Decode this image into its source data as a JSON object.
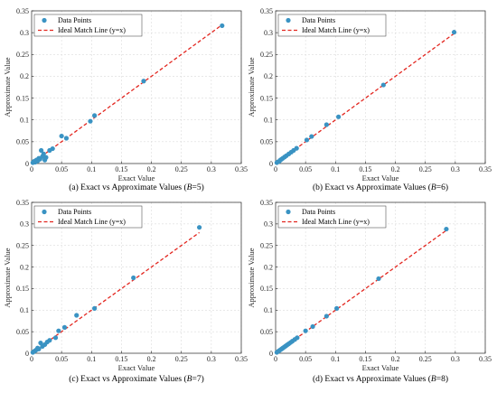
{
  "chart_data": [
    {
      "type": "scatter",
      "caption": "(a) Exact vs Approximate Values (",
      "caption_var": "B",
      "caption_val": "=5)",
      "xlabel": "Exact Value",
      "ylabel": "Approximate Value",
      "xlim": [
        0,
        0.35
      ],
      "ylim": [
        0,
        0.35
      ],
      "xticks": [
        "0",
        "0.05",
        "0.1",
        "0.15",
        "0.2",
        "0.25",
        "0.3",
        "0.35"
      ],
      "yticks": [
        "0",
        "0.05",
        "0.1",
        "0.15",
        "0.2",
        "0.25",
        "0.3",
        "0.35"
      ],
      "legend": [
        "Data Points",
        "Ideal Match Line (y=x)"
      ],
      "legend_position": "top-left",
      "ideal_line": [
        0,
        0.318
      ],
      "points": [
        [
          0.002,
          0.002
        ],
        [
          0.004,
          0.005
        ],
        [
          0.006,
          0.003
        ],
        [
          0.008,
          0.008
        ],
        [
          0.01,
          0.006
        ],
        [
          0.012,
          0.012
        ],
        [
          0.014,
          0.01
        ],
        [
          0.016,
          0.03
        ],
        [
          0.018,
          0.016
        ],
        [
          0.02,
          0.022
        ],
        [
          0.022,
          0.008
        ],
        [
          0.024,
          0.014
        ],
        [
          0.03,
          0.03
        ],
        [
          0.035,
          0.034
        ],
        [
          0.05,
          0.063
        ],
        [
          0.058,
          0.058
        ],
        [
          0.098,
          0.097
        ],
        [
          0.105,
          0.11
        ],
        [
          0.187,
          0.189
        ],
        [
          0.318,
          0.316
        ]
      ]
    },
    {
      "type": "scatter",
      "caption": "(b) Exact vs Approximate Values (",
      "caption_var": "B",
      "caption_val": "=6)",
      "xlabel": "Exact Value",
      "ylabel": "Approximate Value",
      "xlim": [
        0,
        0.35
      ],
      "ylim": [
        0,
        0.35
      ],
      "xticks": [
        "0",
        "0.05",
        "0.1",
        "0.15",
        "0.2",
        "0.25",
        "0.3",
        "0.35"
      ],
      "yticks": [
        "0",
        "0.05",
        "0.1",
        "0.15",
        "0.2",
        "0.25",
        "0.3",
        "0.35"
      ],
      "legend": [
        "Data Points",
        "Ideal Match Line (y=x)"
      ],
      "legend_position": "top-left",
      "ideal_line": [
        0,
        0.3
      ],
      "points": [
        [
          0.002,
          0.002
        ],
        [
          0.004,
          0.004
        ],
        [
          0.006,
          0.005
        ],
        [
          0.008,
          0.008
        ],
        [
          0.01,
          0.01
        ],
        [
          0.012,
          0.012
        ],
        [
          0.015,
          0.015
        ],
        [
          0.018,
          0.018
        ],
        [
          0.022,
          0.022
        ],
        [
          0.026,
          0.026
        ],
        [
          0.03,
          0.03
        ],
        [
          0.035,
          0.035
        ],
        [
          0.052,
          0.054
        ],
        [
          0.06,
          0.062
        ],
        [
          0.085,
          0.089
        ],
        [
          0.105,
          0.107
        ],
        [
          0.18,
          0.18
        ],
        [
          0.298,
          0.301
        ]
      ]
    },
    {
      "type": "scatter",
      "caption": "(c) Exact vs Approximate Values (",
      "caption_var": "B",
      "caption_val": "=7)",
      "xlabel": "Exact Value",
      "ylabel": "Approximate Value",
      "xlim": [
        0,
        0.35
      ],
      "ylim": [
        0,
        0.35
      ],
      "xticks": [
        "0",
        "0.05",
        "0.1",
        "0.15",
        "0.2",
        "0.25",
        "0.3",
        "0.35"
      ],
      "yticks": [
        "0",
        "0.05",
        "0.1",
        "0.15",
        "0.2",
        "0.25",
        "0.3",
        "0.35"
      ],
      "legend": [
        "Data Points",
        "Ideal Match Line (y=x)"
      ],
      "legend_position": "top-left",
      "ideal_line": [
        0,
        0.28
      ],
      "points": [
        [
          0.002,
          0.002
        ],
        [
          0.004,
          0.004
        ],
        [
          0.006,
          0.006
        ],
        [
          0.008,
          0.008
        ],
        [
          0.01,
          0.012
        ],
        [
          0.012,
          0.01
        ],
        [
          0.015,
          0.024
        ],
        [
          0.018,
          0.016
        ],
        [
          0.022,
          0.02
        ],
        [
          0.026,
          0.026
        ],
        [
          0.03,
          0.03
        ],
        [
          0.04,
          0.036
        ],
        [
          0.045,
          0.052
        ],
        [
          0.055,
          0.06
        ],
        [
          0.075,
          0.088
        ],
        [
          0.105,
          0.104
        ],
        [
          0.17,
          0.175
        ],
        [
          0.28,
          0.292
        ]
      ]
    },
    {
      "type": "scatter",
      "caption": "(d) Exact vs Approximate Values (",
      "caption_var": "B",
      "caption_val": "=8)",
      "xlabel": "Exact Value",
      "ylabel": "Approximate Value",
      "xlim": [
        0,
        0.35
      ],
      "ylim": [
        0,
        0.35
      ],
      "xticks": [
        "0",
        "0.05",
        "0.1",
        "0.15",
        "0.2",
        "0.25",
        "0.3",
        "0.35"
      ],
      "yticks": [
        "0",
        "0.05",
        "0.1",
        "0.15",
        "0.2",
        "0.25",
        "0.3",
        "0.35"
      ],
      "legend": [
        "Data Points",
        "Ideal Match Line (y=x)"
      ],
      "legend_position": "top-left",
      "ideal_line": [
        0,
        0.285
      ],
      "points": [
        [
          0.002,
          0.002
        ],
        [
          0.004,
          0.004
        ],
        [
          0.006,
          0.006
        ],
        [
          0.008,
          0.008
        ],
        [
          0.01,
          0.01
        ],
        [
          0.012,
          0.012
        ],
        [
          0.014,
          0.014
        ],
        [
          0.016,
          0.016
        ],
        [
          0.018,
          0.018
        ],
        [
          0.02,
          0.02
        ],
        [
          0.022,
          0.022
        ],
        [
          0.025,
          0.025
        ],
        [
          0.028,
          0.028
        ],
        [
          0.032,
          0.032
        ],
        [
          0.036,
          0.036
        ],
        [
          0.05,
          0.052
        ],
        [
          0.062,
          0.062
        ],
        [
          0.085,
          0.086
        ],
        [
          0.102,
          0.104
        ],
        [
          0.172,
          0.173
        ],
        [
          0.285,
          0.288
        ]
      ]
    }
  ],
  "colors": {
    "points": "#3a93c3",
    "ideal_line": "#e3261f"
  }
}
